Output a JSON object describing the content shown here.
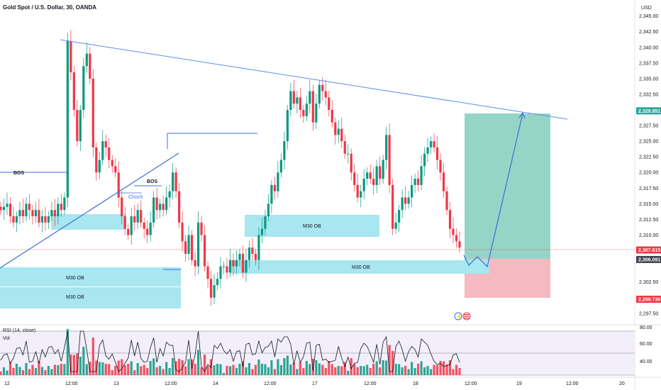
{
  "header": {
    "symbol_title": "Gold Spot / U.S. Dollar, 30, OANDA",
    "currency": "USD"
  },
  "price_axis": {
    "ticks": [
      "2,345.00",
      "2,342.50",
      "2,340.00",
      "2,337.50",
      "2,335.00",
      "2,332.50",
      "2,327.50",
      "2,325.00",
      "2,322.50",
      "2,320.00",
      "2,317.50",
      "2,315.00",
      "2,312.50",
      "2,310.00",
      "2,302.50",
      "2,300.00",
      "2,297.50"
    ],
    "tick_values": [
      2345.0,
      2342.5,
      2340.0,
      2337.5,
      2335.0,
      2332.5,
      2327.5,
      2325.0,
      2322.5,
      2320.0,
      2317.5,
      2315.0,
      2312.5,
      2310.0,
      2302.5,
      2300.0,
      2297.5
    ],
    "badges": [
      {
        "text": "2,329.851",
        "value": 2329.851,
        "color": "#26a69a"
      },
      {
        "text": "2,307.615",
        "value": 2307.615,
        "color": "#f23645"
      },
      {
        "text": "2,306.091",
        "value": 2306.091,
        "color": "#434651"
      },
      {
        "text": "2,299.736",
        "value": 2299.736,
        "color": "#f23645"
      }
    ]
  },
  "time_axis": {
    "labels": [
      "12",
      "12:00",
      "13",
      "12:00",
      "14",
      "12:00",
      "17",
      "12:00",
      "18",
      "12:00",
      "19",
      "12:00",
      "20"
    ]
  },
  "rsi_panel": {
    "title": "RSI (14, close)",
    "vol_label": "Vol",
    "ticks": [
      "80.00",
      "60.00",
      "40.00"
    ]
  },
  "annotations": {
    "bos_1": "BOS",
    "bos_2": "BOS",
    "choch": "Choch",
    "ob_boxes": [
      "M30 OB",
      "M30 OB",
      "M30 OB",
      "M30 OB"
    ]
  },
  "colors": {
    "up": "#26a69a",
    "candle_up": "#089981",
    "down": "#f23645",
    "trendline": "#5b8def",
    "ob_fill": "#a8e6f0",
    "target_zone": "#8fd3c4",
    "stop_zone": "#f7b9c0"
  },
  "chart_data": {
    "type": "candlestick",
    "title": "Gold Spot / U.S. Dollar, 30, OANDA",
    "ylim": [
      2296,
      2347
    ],
    "close_path": [
      2314,
      2314.5,
      2315,
      2313,
      2312,
      2313,
      2314,
      2313,
      2315,
      2314,
      2313,
      2314,
      2312,
      2313,
      2312,
      2313,
      2314,
      2313,
      2315,
      2314,
      2316,
      2341,
      2336,
      2330,
      2325,
      2330,
      2337,
      2339,
      2335,
      2324,
      2320,
      2322,
      2325,
      2324,
      2322,
      2321,
      2320,
      2316,
      2313,
      2311,
      2310,
      2313,
      2312,
      2314,
      2312,
      2311,
      2310,
      2312,
      2316,
      2314,
      2315,
      2314,
      2316,
      2317,
      2320,
      2317,
      2312,
      2309,
      2307,
      2310,
      2306,
      2305,
      2312,
      2310,
      2305,
      2303,
      2300,
      2302,
      2303,
      2305,
      2305,
      2304,
      2306,
      2305,
      2306,
      2307,
      2304,
      2306,
      2308,
      2307,
      2306,
      2310,
      2311,
      2313,
      2315,
      2318,
      2317,
      2320,
      2322,
      2325,
      2330,
      2333,
      2331,
      2332,
      2330,
      2329,
      2331,
      2333,
      2328,
      2331,
      2334,
      2333,
      2332,
      2330,
      2328,
      2326,
      2327,
      2325,
      2323,
      2323,
      2320,
      2318,
      2316,
      2317,
      2319,
      2320,
      2319,
      2318,
      2321,
      2319,
      2322,
      2326,
      2318,
      2311,
      2312,
      2314,
      2316,
      2315,
      2316,
      2318,
      2319,
      2318,
      2321,
      2323,
      2324,
      2325,
      2324,
      2322,
      2320,
      2317,
      2314,
      2311,
      2310,
      2309,
      2308
    ],
    "trendlines": [
      {
        "from": [
          2341.5
        ],
        "to": [
          2329.6
        ],
        "color": "#5b8def"
      }
    ],
    "position": {
      "entry": 2306.091,
      "target": 2329.851,
      "stop": 2299.736,
      "last_price": 2307.615
    },
    "order_blocks": [
      {
        "label": "M30 OB",
        "low": 2303.6,
        "high": 2305.1
      },
      {
        "label": "M30 OB",
        "low": 2299.7,
        "high": 2303.5
      },
      {
        "label": "M30 OB",
        "low": 2310.1,
        "high": 2313.4
      },
      {
        "label": "M30 OB",
        "low": 2305.2,
        "high": 2306.6
      }
    ],
    "rsi": {
      "range": [
        20,
        85
      ],
      "levels": [
        70,
        50,
        30
      ]
    }
  }
}
